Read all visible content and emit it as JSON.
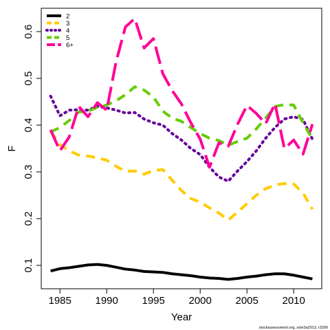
{
  "footer": {
    "credit": "stockassessment.org, sole3a2013, r3206"
  },
  "chart_data": {
    "type": "line",
    "xlabel": "Year",
    "ylabel": "F",
    "xlim": [
      1983,
      2013
    ],
    "ylim": [
      0.05,
      0.65
    ],
    "x_ticks": [
      1985,
      1990,
      1995,
      2000,
      2005,
      2010
    ],
    "y_ticks": [
      0.1,
      0.2,
      0.3,
      0.4,
      0.5,
      0.6
    ],
    "grid": false,
    "legend_position": "top-left",
    "x": [
      1984,
      1985,
      1986,
      1987,
      1988,
      1989,
      1990,
      1991,
      1992,
      1993,
      1994,
      1995,
      1996,
      1997,
      1998,
      1999,
      2000,
      2001,
      2002,
      2003,
      2004,
      2005,
      2006,
      2007,
      2008,
      2009,
      2010,
      2011,
      2012
    ],
    "series": [
      {
        "name": "2",
        "color": "#000000",
        "dash": "solid",
        "values": [
          0.088,
          0.093,
          0.095,
          0.098,
          0.101,
          0.102,
          0.1,
          0.096,
          0.092,
          0.09,
          0.087,
          0.086,
          0.085,
          0.082,
          0.08,
          0.078,
          0.075,
          0.073,
          0.072,
          0.07,
          0.072,
          0.075,
          0.077,
          0.08,
          0.082,
          0.082,
          0.079,
          0.075,
          0.071
        ]
      },
      {
        "name": "3",
        "color": "#FFCC00",
        "dash": "dashed",
        "values": [
          0.387,
          0.358,
          0.345,
          0.336,
          0.334,
          0.33,
          0.325,
          0.312,
          0.301,
          0.302,
          0.295,
          0.303,
          0.305,
          0.282,
          0.26,
          0.243,
          0.235,
          0.223,
          0.212,
          0.197,
          0.214,
          0.232,
          0.25,
          0.264,
          0.272,
          0.275,
          0.274,
          0.255,
          0.22
        ]
      },
      {
        "name": "4",
        "color": "#660099",
        "dash": "dotted",
        "values": [
          0.462,
          0.42,
          0.432,
          0.433,
          0.432,
          0.44,
          0.437,
          0.432,
          0.426,
          0.427,
          0.413,
          0.405,
          0.4,
          0.382,
          0.368,
          0.35,
          0.337,
          0.31,
          0.289,
          0.28,
          0.302,
          0.322,
          0.345,
          0.372,
          0.395,
          0.413,
          0.418,
          0.412,
          0.37
        ]
      },
      {
        "name": "5",
        "color": "#66CC00",
        "dash": "dashed",
        "values": [
          0.385,
          0.395,
          0.41,
          0.428,
          0.43,
          0.438,
          0.443,
          0.452,
          0.465,
          0.482,
          0.475,
          0.46,
          0.43,
          0.415,
          0.408,
          0.395,
          0.382,
          0.372,
          0.367,
          0.357,
          0.365,
          0.372,
          0.392,
          0.415,
          0.44,
          0.444,
          0.443,
          0.405,
          0.37
        ]
      },
      {
        "name": "6+",
        "color": "#FF0099",
        "dash": "longdash",
        "values": [
          0.39,
          0.345,
          0.375,
          0.44,
          0.418,
          0.448,
          0.432,
          0.535,
          0.61,
          0.628,
          0.565,
          0.585,
          0.51,
          0.474,
          0.445,
          0.405,
          0.37,
          0.31,
          0.362,
          0.355,
          0.402,
          0.442,
          0.425,
          0.403,
          0.446,
          0.35,
          0.368,
          0.338,
          0.402
        ]
      }
    ]
  }
}
